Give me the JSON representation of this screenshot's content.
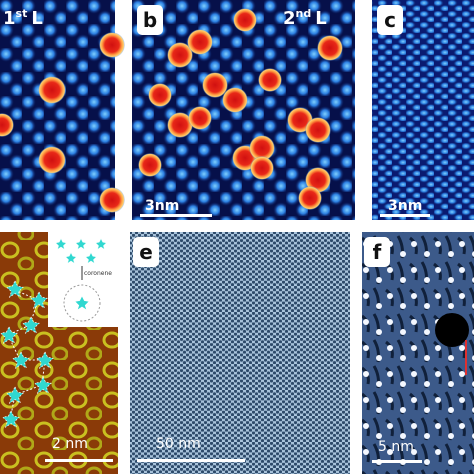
{
  "panels": {
    "a": {
      "layer": {
        "number": "1",
        "suffix": "st",
        "unit": "L"
      }
    },
    "b": {
      "label": "b",
      "layer": {
        "number": "2",
        "suffix": "nd",
        "unit": "L"
      },
      "scale_bar": "3nm"
    },
    "c": {
      "label": "c",
      "scale_bar": "3nm"
    },
    "d": {
      "inset_label": "coronene",
      "scale_bar": "2 nm"
    },
    "e": {
      "label": "e",
      "scale_bar": "50 nm"
    },
    "f": {
      "label": "f",
      "scale_bar": "5 nm"
    }
  }
}
